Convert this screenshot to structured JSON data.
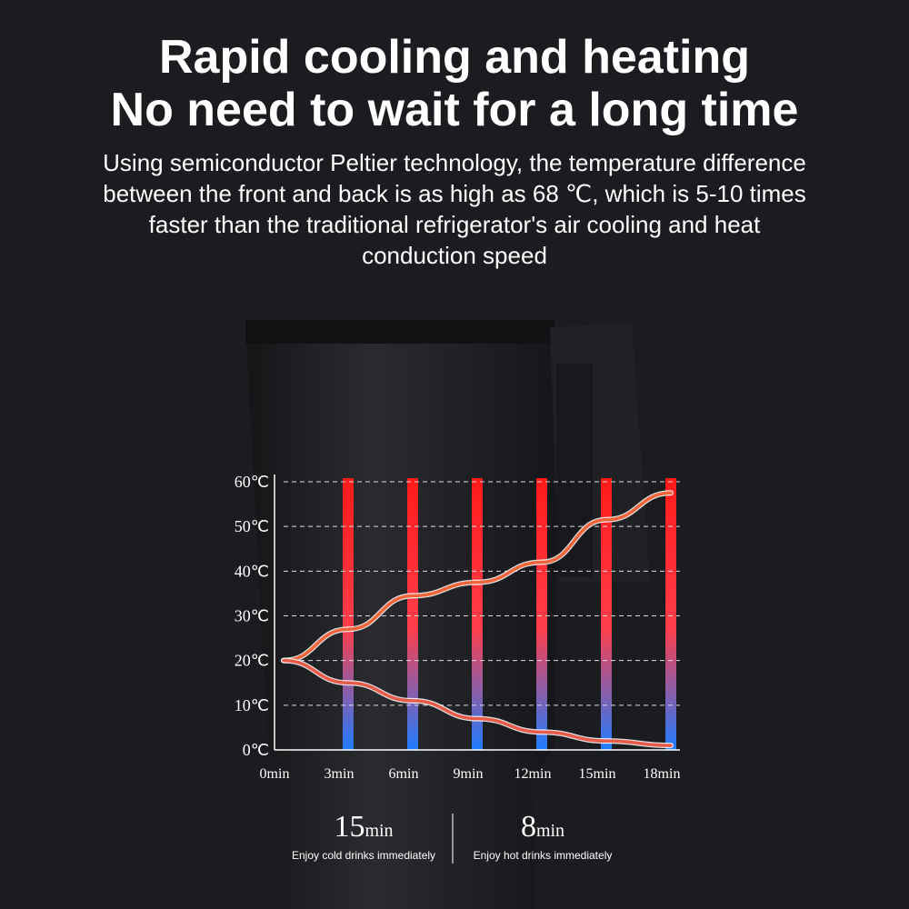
{
  "header": {
    "title": [
      "Rapid cooling and heating",
      "No need to wait for a long time"
    ],
    "description": [
      "Using semiconductor Peltier technology, the temperature difference",
      "between the front and back is as high as 68 ℃, which is 5-10 times",
      "faster than the traditional refrigerator's air cooling and heat",
      "conduction speed"
    ]
  },
  "chart_data": {
    "type": "line",
    "categories": [
      "0min",
      "3min",
      "6min",
      "9min",
      "12min",
      "15min",
      "18min"
    ],
    "series": [
      {
        "color": "#f0643a",
        "values": [
          20,
          27,
          34.5,
          37.5,
          42,
          51.5,
          57.5
        ]
      },
      {
        "color": "#e85a48",
        "values": [
          20,
          15,
          11,
          7,
          4,
          2,
          1
        ]
      }
    ],
    "ylim": [
      0,
      60
    ],
    "yticks": [
      {
        "value": 0,
        "label": "0℃"
      },
      {
        "value": 10,
        "label": "10℃"
      },
      {
        "value": 20,
        "label": "20℃"
      },
      {
        "value": 30,
        "label": "30℃"
      },
      {
        "value": 40,
        "label": "40℃"
      },
      {
        "value": 50,
        "label": "50℃"
      },
      {
        "value": 60,
        "label": "60℃"
      }
    ],
    "grid": true
  },
  "footer": {
    "stats": [
      {
        "value": "15",
        "unit": "min",
        "caption": "Enjoy cold drinks immediately"
      },
      {
        "value": "8",
        "unit": "min",
        "caption": "Enjoy hot drinks immediately"
      }
    ]
  }
}
